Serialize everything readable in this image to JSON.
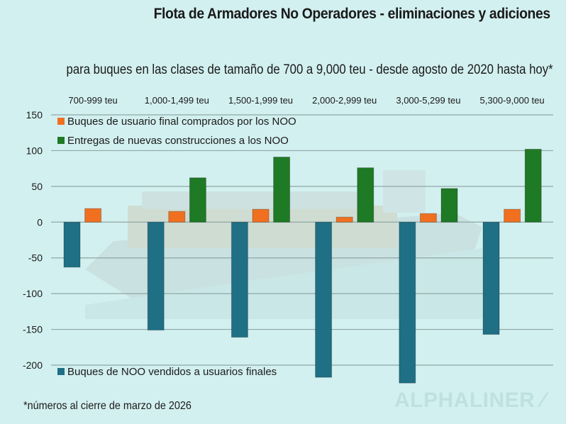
{
  "chart_data": {
    "type": "bar",
    "title": "Flota de Armadores No Operadores - eliminaciones y adiciones",
    "subtitle": "para buques en las clases de tamaño de 700 a 9,000 teu - desde agosto de 2020 hasta hoy*",
    "footnote": "*números al cierre de marzo de 2026",
    "watermark": "ALPHALINER",
    "xlabel": "",
    "ylabel": "",
    "categories": [
      "700-999 teu",
      "1,000-1,499 teu",
      "1,500-1,999 teu",
      "2,000-2,999 teu",
      "3,000-5,299 teu",
      "5,300-9,000 teu"
    ],
    "ylim": [
      -200,
      150
    ],
    "yticks": [
      150,
      100,
      50,
      0,
      -50,
      -100,
      -150,
      -200
    ],
    "ytick_labels": [
      "150",
      "100",
      "50",
      "0",
      "-50",
      "-100",
      "-150",
      "-200"
    ],
    "grid": true,
    "category_labels_position": "top",
    "series": [
      {
        "name": "Buques de NOO vendidos a usuarios finales",
        "color": "#1f6f85",
        "values": [
          -63,
          -151,
          -161,
          -217,
          -225,
          -157
        ]
      },
      {
        "name": "Buques de usuario final comprados por los NOO",
        "color": "#f07020",
        "values": [
          19,
          15,
          18,
          7,
          12,
          18
        ]
      },
      {
        "name": "Entregas de nuevas construcciones a los NOO",
        "color": "#1e7a25",
        "values": [
          0,
          62,
          91,
          76,
          47,
          102
        ]
      }
    ],
    "legend": [
      {
        "label": "Buques de usuario final comprados por los NOO",
        "color": "#f07020",
        "placement": "top-left"
      },
      {
        "label": "Entregas de nuevas construcciones a los NOO",
        "color": "#1e7a25",
        "placement": "top-left"
      },
      {
        "label": "Buques de NOO vendidos a usuarios finales",
        "color": "#1f6f85",
        "placement": "bottom-left"
      }
    ]
  }
}
